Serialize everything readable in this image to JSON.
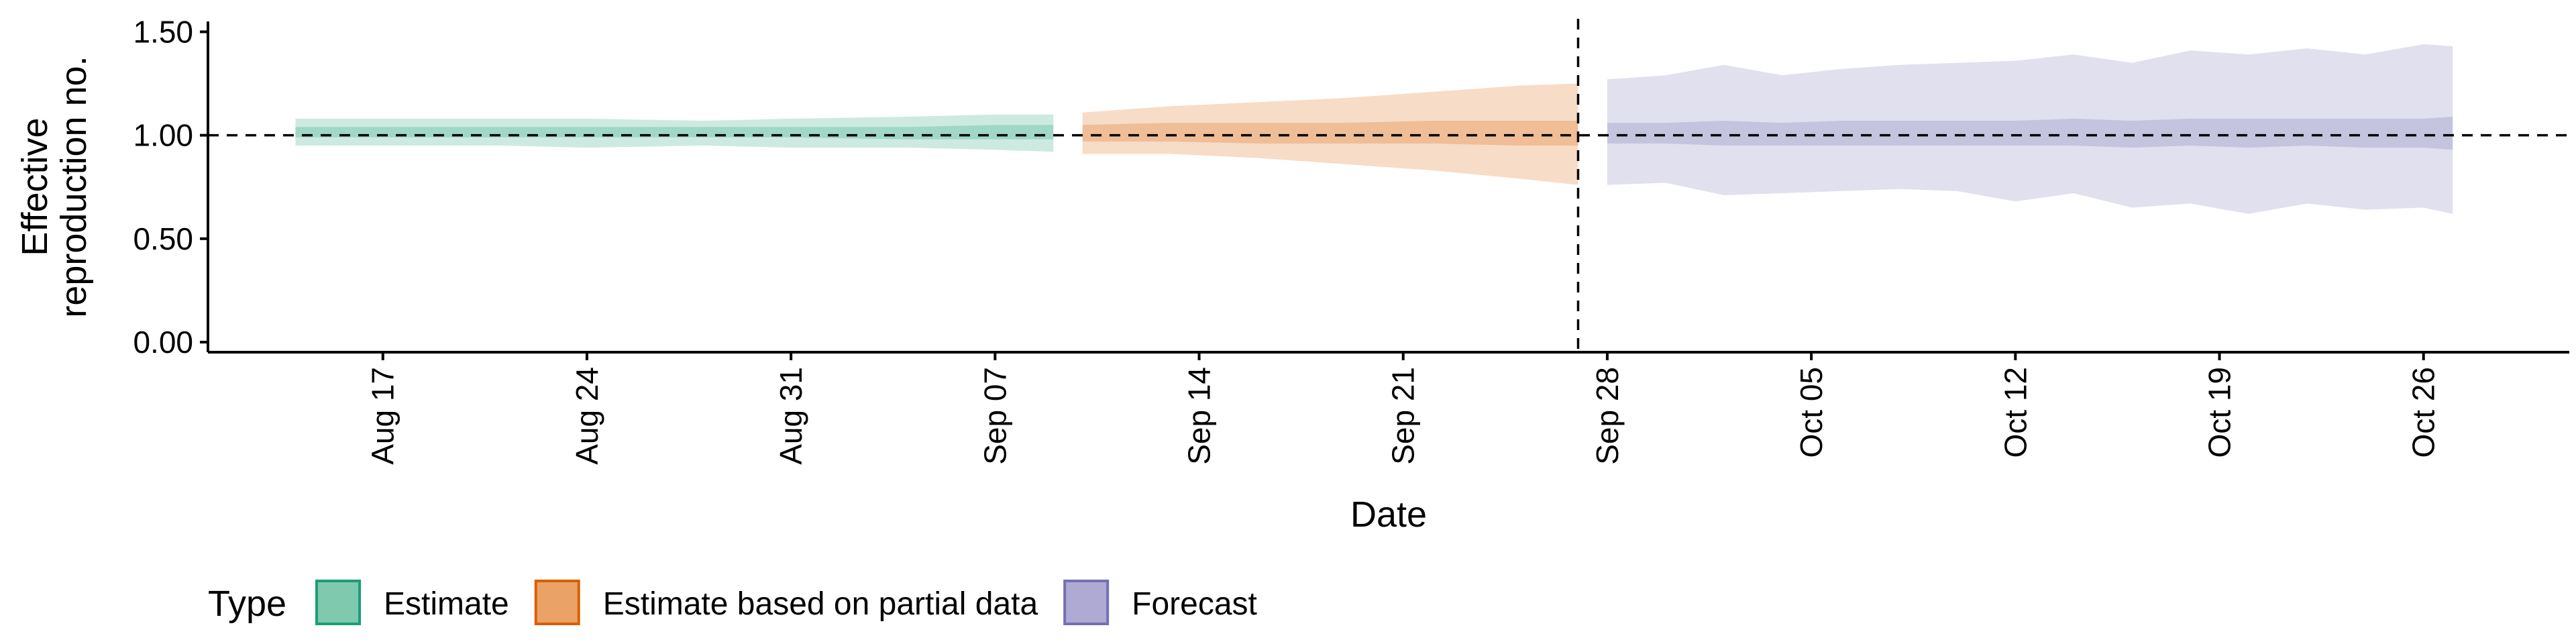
{
  "chart_data": {
    "type": "area",
    "xlabel": "Date",
    "ylabel": [
      "Effective",
      "reproduction no."
    ],
    "ylim": [
      0,
      1.55
    ],
    "xlim": [
      "2020-08-11",
      "2020-10-31"
    ],
    "y_ticks": [
      0.0,
      0.5,
      1.0,
      1.5
    ],
    "y_tick_labels": [
      "0.00",
      "0.50",
      "1.00",
      "1.50"
    ],
    "x_ticks": [
      "2020-08-17",
      "2020-08-24",
      "2020-08-31",
      "2020-09-07",
      "2020-09-14",
      "2020-09-21",
      "2020-09-28",
      "2020-10-05",
      "2020-10-12",
      "2020-10-19",
      "2020-10-26"
    ],
    "x_tick_labels": [
      "Aug 17",
      "Aug 24",
      "Aug 31",
      "Sep 07",
      "Sep 14",
      "Sep 21",
      "Sep 28",
      "Oct 05",
      "Oct 12",
      "Oct 19",
      "Oct 26"
    ],
    "reference_hline": 1.0,
    "forecast_start_vline": "2020-09-27",
    "grid": false,
    "legend": {
      "title": "Type",
      "position": "bottom",
      "entries": [
        {
          "label": "Estimate",
          "fill": "#7fc9af",
          "stroke": "#1b9e77"
        },
        {
          "label": "Estimate based on partial data",
          "fill": "#eba266",
          "stroke": "#d95f02"
        },
        {
          "label": "Forecast",
          "fill": "#aeaad4",
          "stroke": "#7570b3"
        }
      ]
    },
    "series": [
      {
        "name": "Estimate",
        "color": "#1b9e77",
        "x": [
          "2020-08-14",
          "2020-08-17",
          "2020-08-21",
          "2020-08-24",
          "2020-08-28",
          "2020-08-31",
          "2020-09-04",
          "2020-09-07",
          "2020-09-09"
        ],
        "outer_lower": [
          0.95,
          0.95,
          0.95,
          0.94,
          0.95,
          0.94,
          0.94,
          0.93,
          0.92
        ],
        "outer_upper": [
          1.08,
          1.08,
          1.08,
          1.08,
          1.07,
          1.08,
          1.09,
          1.1,
          1.1
        ],
        "inner_lower": [
          0.99,
          0.99,
          0.99,
          0.99,
          0.99,
          0.99,
          0.98,
          0.98,
          0.98
        ],
        "inner_upper": [
          1.04,
          1.04,
          1.04,
          1.04,
          1.04,
          1.04,
          1.04,
          1.05,
          1.05
        ]
      },
      {
        "name": "Estimate based on partial data",
        "color": "#d95f02",
        "x": [
          "2020-09-10",
          "2020-09-13",
          "2020-09-16",
          "2020-09-19",
          "2020-09-22",
          "2020-09-25",
          "2020-09-27"
        ],
        "outer_lower": [
          0.91,
          0.91,
          0.89,
          0.86,
          0.83,
          0.79,
          0.76
        ],
        "outer_upper": [
          1.11,
          1.14,
          1.16,
          1.18,
          1.21,
          1.24,
          1.25
        ],
        "inner_lower": [
          0.97,
          0.97,
          0.96,
          0.96,
          0.96,
          0.95,
          0.95
        ],
        "inner_upper": [
          1.05,
          1.06,
          1.06,
          1.06,
          1.07,
          1.07,
          1.07
        ]
      },
      {
        "name": "Forecast",
        "color": "#7570b3",
        "x": [
          "2020-09-28",
          "2020-09-30",
          "2020-10-02",
          "2020-10-04",
          "2020-10-06",
          "2020-10-08",
          "2020-10-10",
          "2020-10-12",
          "2020-10-14",
          "2020-10-16",
          "2020-10-18",
          "2020-10-20",
          "2020-10-22",
          "2020-10-24",
          "2020-10-26",
          "2020-10-27"
        ],
        "outer_lower": [
          0.76,
          0.77,
          0.71,
          0.72,
          0.73,
          0.74,
          0.73,
          0.68,
          0.72,
          0.65,
          0.67,
          0.62,
          0.67,
          0.64,
          0.65,
          0.62
        ],
        "outer_upper": [
          1.27,
          1.29,
          1.34,
          1.29,
          1.32,
          1.34,
          1.35,
          1.36,
          1.39,
          1.35,
          1.41,
          1.39,
          1.42,
          1.39,
          1.44,
          1.43
        ],
        "inner_lower": [
          0.96,
          0.96,
          0.95,
          0.95,
          0.95,
          0.95,
          0.95,
          0.95,
          0.95,
          0.94,
          0.95,
          0.94,
          0.95,
          0.94,
          0.94,
          0.93
        ],
        "inner_upper": [
          1.06,
          1.06,
          1.07,
          1.06,
          1.07,
          1.07,
          1.07,
          1.07,
          1.08,
          1.07,
          1.08,
          1.08,
          1.08,
          1.08,
          1.08,
          1.09
        ]
      }
    ]
  }
}
